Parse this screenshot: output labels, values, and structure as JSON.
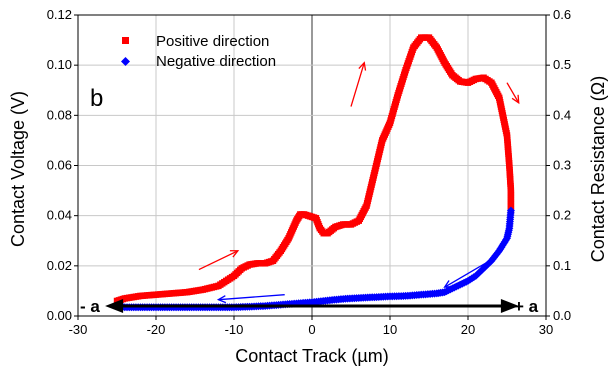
{
  "chart_data": {
    "type": "scatter",
    "panel_label": "b",
    "xlabel": "Contact Track (µm)",
    "ylabel": "Contact Voltage (V)",
    "y2label": "Contact Resistance (Ω)",
    "xlim": [
      -30,
      30
    ],
    "ylim": [
      0,
      0.12
    ],
    "y2lim": [
      0,
      0.6
    ],
    "x_ticks": [
      "-30",
      "-20",
      "-10",
      "0",
      "10",
      "20",
      "30"
    ],
    "y_ticks": [
      "0.00",
      "0.02",
      "0.04",
      "0.06",
      "0.08",
      "0.10",
      "0.12"
    ],
    "y2_ticks": [
      "0.0",
      "0.1",
      "0.2",
      "0.3",
      "0.4",
      "0.5",
      "0.6"
    ],
    "grid": true,
    "legend_position": "top-left",
    "end_labels": [
      "- a",
      "+ a"
    ],
    "series": [
      {
        "name": "Positive direction",
        "color": "#ff0000",
        "marker": "square",
        "points": [
          [
            -25,
            0.006
          ],
          [
            -24,
            0.007
          ],
          [
            -22,
            0.008
          ],
          [
            -20,
            0.0085
          ],
          [
            -18,
            0.009
          ],
          [
            -16,
            0.0095
          ],
          [
            -14,
            0.0105
          ],
          [
            -12,
            0.012
          ],
          [
            -11,
            0.014
          ],
          [
            -10,
            0.016
          ],
          [
            -9,
            0.019
          ],
          [
            -8,
            0.0205
          ],
          [
            -7,
            0.021
          ],
          [
            -6,
            0.021
          ],
          [
            -5,
            0.022
          ],
          [
            -4,
            0.026
          ],
          [
            -3,
            0.031
          ],
          [
            -2,
            0.038
          ],
          [
            -1.5,
            0.0405
          ],
          [
            -1,
            0.0405
          ],
          [
            0,
            0.0395
          ],
          [
            0.5,
            0.039
          ],
          [
            1,
            0.035
          ],
          [
            1.5,
            0.033
          ],
          [
            2,
            0.033
          ],
          [
            3,
            0.0355
          ],
          [
            4,
            0.0365
          ],
          [
            5,
            0.0365
          ],
          [
            6,
            0.038
          ],
          [
            7,
            0.044
          ],
          [
            8,
            0.057
          ],
          [
            9,
            0.07
          ],
          [
            10,
            0.077
          ],
          [
            11,
            0.088
          ],
          [
            12,
            0.098
          ],
          [
            13,
            0.107
          ],
          [
            14,
            0.111
          ],
          [
            15,
            0.111
          ],
          [
            16,
            0.107
          ],
          [
            17,
            0.101
          ],
          [
            18,
            0.096
          ],
          [
            19,
            0.0935
          ],
          [
            20,
            0.093
          ],
          [
            21,
            0.0945
          ],
          [
            22,
            0.095
          ],
          [
            23,
            0.093
          ],
          [
            24,
            0.087
          ],
          [
            25,
            0.072
          ],
          [
            25.3,
            0.06
          ],
          [
            25.5,
            0.05
          ],
          [
            25.5,
            0.042
          ]
        ]
      },
      {
        "name": "Negative direction",
        "color": "#0000ff",
        "marker": "diamond",
        "points": [
          [
            25.5,
            0.042
          ],
          [
            25.3,
            0.035
          ],
          [
            25,
            0.031
          ],
          [
            24,
            0.026
          ],
          [
            23,
            0.022
          ],
          [
            22,
            0.019
          ],
          [
            21,
            0.016
          ],
          [
            20,
            0.014
          ],
          [
            19,
            0.0125
          ],
          [
            18,
            0.011
          ],
          [
            17,
            0.0095
          ],
          [
            16,
            0.009
          ],
          [
            14,
            0.0085
          ],
          [
            12,
            0.008
          ],
          [
            10,
            0.0078
          ],
          [
            8,
            0.0075
          ],
          [
            6,
            0.0072
          ],
          [
            4,
            0.0068
          ],
          [
            2,
            0.0062
          ],
          [
            0,
            0.0055
          ],
          [
            -2,
            0.005
          ],
          [
            -4,
            0.0045
          ],
          [
            -6,
            0.004
          ],
          [
            -8,
            0.0037
          ],
          [
            -10,
            0.0035
          ],
          [
            -12,
            0.0035
          ],
          [
            -14,
            0.0035
          ],
          [
            -16,
            0.0035
          ],
          [
            -18,
            0.0035
          ],
          [
            -20,
            0.0035
          ],
          [
            -22,
            0.0035
          ],
          [
            -24,
            0.0035
          ],
          [
            -25,
            0.004
          ]
        ]
      }
    ],
    "arrows": [
      {
        "color": "#ff0000",
        "from": [
          -14.5,
          0.0185
        ],
        "to": [
          -9.5,
          0.026
        ]
      },
      {
        "color": "#ff0000",
        "from": [
          5,
          0.0835
        ],
        "to": [
          6.7,
          0.101
        ]
      },
      {
        "color": "#ff0000",
        "from": [
          25,
          0.093
        ],
        "to": [
          26.5,
          0.085
        ]
      },
      {
        "color": "#0000ff",
        "from": [
          22.5,
          0.0215
        ],
        "to": [
          17,
          0.0115
        ]
      },
      {
        "color": "#0000ff",
        "from": [
          -3.5,
          0.0085
        ],
        "to": [
          -12,
          0.0065
        ]
      }
    ]
  }
}
